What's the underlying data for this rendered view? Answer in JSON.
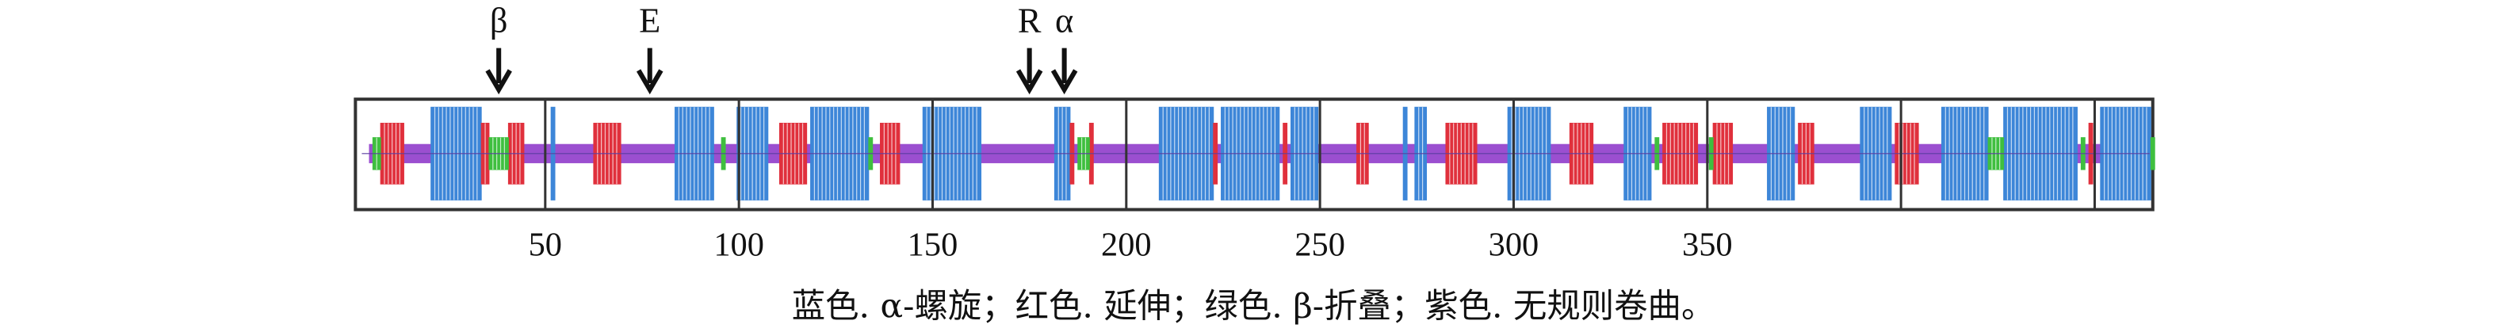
{
  "chart_data": {
    "type": "track",
    "xlim": [
      1,
      465
    ],
    "xticks": [
      50,
      100,
      150,
      200,
      250,
      300,
      350
    ],
    "gridlines": [
      50,
      100,
      150,
      200,
      250,
      300,
      350,
      400,
      450
    ],
    "annotations": [
      {
        "label": "β",
        "x": 38
      },
      {
        "label": "E",
        "x": 77
      },
      {
        "label": "R",
        "x": 175
      },
      {
        "label": "α",
        "x": 184
      }
    ],
    "caption": "蓝色. α-螺旋；红色. 延伸；绿色. β-折叠；紫色. 无规则卷曲。",
    "series": [
      {
        "color": "#9b4fd0",
        "segments": [
          [
            5,
            465
          ]
        ]
      },
      {
        "color": "#3d86d8",
        "segments": [
          [
            21,
            33
          ],
          [
            52,
            52
          ],
          [
            84,
            93
          ],
          [
            100,
            107
          ],
          [
            119,
            133
          ],
          [
            148,
            162
          ],
          [
            182,
            185
          ],
          [
            209,
            222
          ],
          [
            225,
            239
          ],
          [
            243,
            249
          ],
          [
            272,
            272
          ],
          [
            275,
            277
          ],
          [
            299,
            309
          ],
          [
            329,
            335
          ],
          [
            366,
            372
          ],
          [
            390,
            397
          ],
          [
            411,
            422
          ],
          [
            427,
            445
          ],
          [
            452,
            464
          ]
        ]
      },
      {
        "color": "#e0303c",
        "segments": [
          [
            8,
            13
          ],
          [
            34,
            35
          ],
          [
            41,
            44
          ],
          [
            63,
            69
          ],
          [
            111,
            117
          ],
          [
            137,
            141
          ],
          [
            186,
            186
          ],
          [
            191,
            191
          ],
          [
            223,
            223
          ],
          [
            241,
            241
          ],
          [
            260,
            262
          ],
          [
            283,
            290
          ],
          [
            315,
            320
          ],
          [
            339,
            347
          ],
          [
            352,
            356
          ],
          [
            374,
            377
          ],
          [
            399,
            404
          ],
          [
            449,
            449
          ]
        ]
      },
      {
        "color": "#3fbf3f",
        "segments": [
          [
            6,
            7
          ],
          [
            36,
            40
          ],
          [
            96,
            96
          ],
          [
            134,
            134
          ],
          [
            188,
            190
          ],
          [
            337,
            337
          ],
          [
            351,
            351
          ],
          [
            423,
            426
          ],
          [
            447,
            447
          ],
          [
            465,
            465
          ]
        ]
      }
    ]
  }
}
